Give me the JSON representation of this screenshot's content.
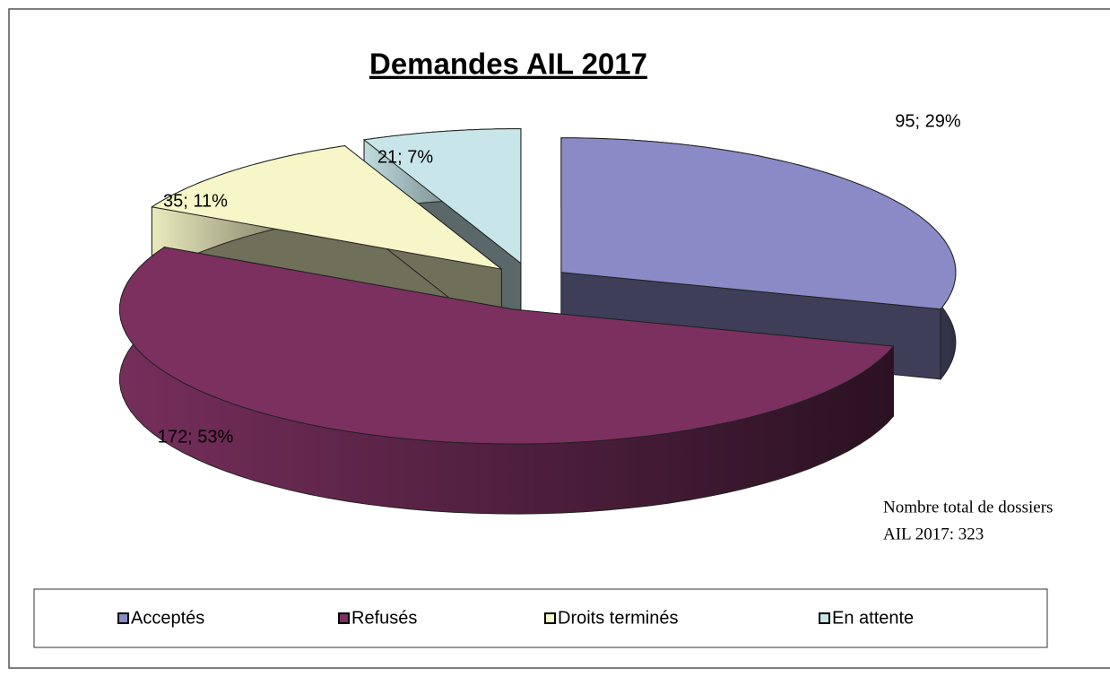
{
  "chart_data": {
    "type": "pie3d",
    "title": "Demandes AIL 2017",
    "categories": [
      "Acceptés",
      "Refusés",
      "Droits terminés",
      "En attente"
    ],
    "values": [
      95,
      172,
      35,
      21
    ],
    "value_labels": [
      "95; 29%",
      "172; 53%",
      "35; 11%",
      "21; 7%"
    ],
    "colors": [
      "#8a8ac6",
      "#7b3060",
      "#f6f6c8",
      "#c8e6ea"
    ],
    "annotations": [
      "Nombre total de dossiers",
      "AIL 2017: 323"
    ],
    "legend": "bottom"
  }
}
